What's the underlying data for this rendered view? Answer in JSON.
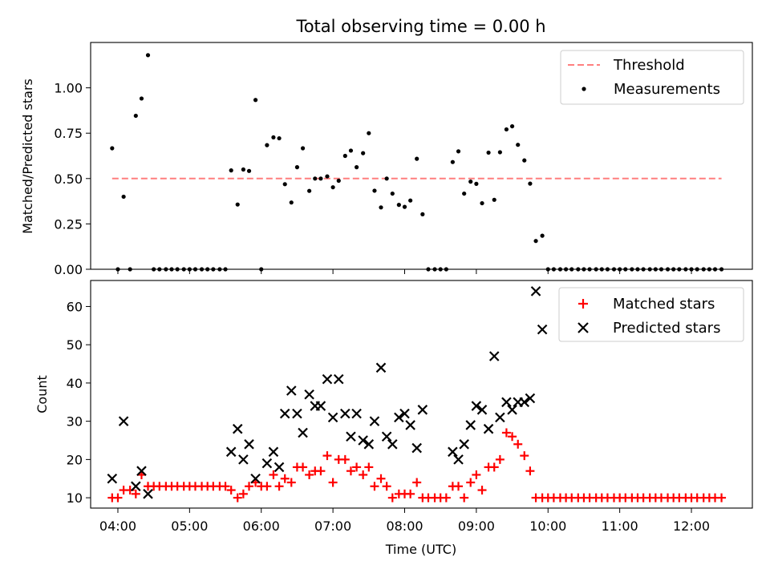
{
  "chart_data": [
    {
      "type": "scatter",
      "title": "Total observing time = 0.00 h",
      "xlabel": "",
      "ylabel": "Matched/Predicted stars",
      "x_units": "hours UTC",
      "xlim": [
        3.62,
        12.85
      ],
      "ylim": [
        0.0,
        1.25
      ],
      "yticks": [
        0.0,
        0.25,
        0.5,
        0.75,
        1.0
      ],
      "yticklabels": [
        "0.00",
        "0.25",
        "0.50",
        "0.75",
        "1.00"
      ],
      "legend": {
        "placement": "top-right",
        "entries": [
          "Threshold",
          "Measurements"
        ]
      },
      "threshold": {
        "name": "Threshold",
        "value": 0.5,
        "x_range": [
          3.92,
          12.42
        ],
        "color": "#ff7f7f",
        "style": "dashed"
      },
      "series": [
        {
          "name": "Measurements",
          "color": "#000000",
          "marker": "dot",
          "points": [
            [
              3.92,
              0.667
            ],
            [
              4.0,
              0.0
            ],
            [
              4.08,
              0.4
            ],
            [
              4.17,
              0.0
            ],
            [
              4.25,
              0.846
            ],
            [
              4.33,
              0.941
            ],
            [
              4.42,
              1.18
            ],
            [
              4.5,
              0.0
            ],
            [
              4.58,
              0.0
            ],
            [
              4.67,
              0.0
            ],
            [
              4.75,
              0.0
            ],
            [
              4.83,
              0.0
            ],
            [
              4.92,
              0.0
            ],
            [
              5.0,
              0.0
            ],
            [
              5.08,
              0.0
            ],
            [
              5.17,
              0.0
            ],
            [
              5.25,
              0.0
            ],
            [
              5.33,
              0.0
            ],
            [
              5.42,
              0.0
            ],
            [
              5.5,
              0.0
            ],
            [
              5.58,
              0.545
            ],
            [
              5.67,
              0.357
            ],
            [
              5.75,
              0.55
            ],
            [
              5.83,
              0.542
            ],
            [
              5.92,
              0.933
            ],
            [
              6.0,
              0.0
            ],
            [
              6.08,
              0.684
            ],
            [
              6.17,
              0.727
            ],
            [
              6.25,
              0.722
            ],
            [
              6.33,
              0.469
            ],
            [
              6.42,
              0.368
            ],
            [
              6.5,
              0.5625
            ],
            [
              6.58,
              0.667
            ],
            [
              6.67,
              0.432
            ],
            [
              6.75,
              0.5
            ],
            [
              6.83,
              0.5
            ],
            [
              6.92,
              0.512
            ],
            [
              7.0,
              0.452
            ],
            [
              7.08,
              0.488
            ],
            [
              7.17,
              0.625
            ],
            [
              7.25,
              0.654
            ],
            [
              7.33,
              0.5625
            ],
            [
              7.42,
              0.64
            ],
            [
              7.5,
              0.75
            ],
            [
              7.58,
              0.433
            ],
            [
              7.67,
              0.341
            ],
            [
              7.75,
              0.5
            ],
            [
              7.83,
              0.417
            ],
            [
              7.92,
              0.355
            ],
            [
              8.0,
              0.344
            ],
            [
              8.08,
              0.379
            ],
            [
              8.17,
              0.609
            ],
            [
              8.25,
              0.303
            ],
            [
              8.33,
              0.0
            ],
            [
              8.42,
              0.0
            ],
            [
              8.5,
              0.0
            ],
            [
              8.58,
              0.0
            ],
            [
              8.67,
              0.591
            ],
            [
              8.75,
              0.65
            ],
            [
              8.83,
              0.417
            ],
            [
              8.92,
              0.483
            ],
            [
              9.0,
              0.471
            ],
            [
              9.08,
              0.364
            ],
            [
              9.17,
              0.643
            ],
            [
              9.25,
              0.383
            ],
            [
              9.33,
              0.645
            ],
            [
              9.42,
              0.771
            ],
            [
              9.5,
              0.788
            ],
            [
              9.58,
              0.686
            ],
            [
              9.67,
              0.6
            ],
            [
              9.75,
              0.472
            ],
            [
              9.83,
              0.156
            ],
            [
              9.92,
              0.185
            ],
            [
              10.0,
              0.0
            ],
            [
              10.08,
              0.0
            ],
            [
              10.17,
              0.0
            ],
            [
              10.25,
              0.0
            ],
            [
              10.33,
              0.0
            ],
            [
              10.42,
              0.0
            ],
            [
              10.5,
              0.0
            ],
            [
              10.58,
              0.0
            ],
            [
              10.67,
              0.0
            ],
            [
              10.75,
              0.0
            ],
            [
              10.83,
              0.0
            ],
            [
              10.92,
              0.0
            ],
            [
              11.0,
              0.0
            ],
            [
              11.08,
              0.0
            ],
            [
              11.17,
              0.0
            ],
            [
              11.25,
              0.0
            ],
            [
              11.33,
              0.0
            ],
            [
              11.42,
              0.0
            ],
            [
              11.5,
              0.0
            ],
            [
              11.58,
              0.0
            ],
            [
              11.67,
              0.0
            ],
            [
              11.75,
              0.0
            ],
            [
              11.83,
              0.0
            ],
            [
              11.92,
              0.0
            ],
            [
              12.0,
              0.0
            ],
            [
              12.08,
              0.0
            ],
            [
              12.17,
              0.0
            ],
            [
              12.25,
              0.0
            ],
            [
              12.33,
              0.0
            ],
            [
              12.42,
              0.0
            ]
          ]
        }
      ]
    },
    {
      "type": "scatter",
      "title": "",
      "xlabel": "Time (UTC)",
      "ylabel": "Count",
      "x_units": "hours UTC",
      "xlim": [
        3.62,
        12.85
      ],
      "ylim": [
        7.3,
        66.8
      ],
      "yticks": [
        10,
        20,
        30,
        40,
        50,
        60
      ],
      "yticklabels": [
        "10",
        "20",
        "30",
        "40",
        "50",
        "60"
      ],
      "xticks": [
        4,
        5,
        6,
        7,
        8,
        9,
        10,
        11,
        12
      ],
      "xticklabels": [
        "04:00",
        "05:00",
        "06:00",
        "07:00",
        "08:00",
        "09:00",
        "10:00",
        "11:00",
        "12:00"
      ],
      "legend": {
        "placement": "top-right",
        "entries": [
          "Matched stars",
          "Predicted stars"
        ]
      },
      "series": [
        {
          "name": "Matched stars",
          "color": "#ff0000",
          "marker": "plus",
          "points": [
            [
              3.92,
              10
            ],
            [
              4.0,
              10
            ],
            [
              4.08,
              12
            ],
            [
              4.17,
              12
            ],
            [
              4.25,
              11
            ],
            [
              4.33,
              16
            ],
            [
              4.42,
              13
            ],
            [
              4.5,
              13
            ],
            [
              4.58,
              13
            ],
            [
              4.67,
              13
            ],
            [
              4.75,
              13
            ],
            [
              4.83,
              13
            ],
            [
              4.92,
              13
            ],
            [
              5.0,
              13
            ],
            [
              5.08,
              13
            ],
            [
              5.17,
              13
            ],
            [
              5.25,
              13
            ],
            [
              5.33,
              13
            ],
            [
              5.42,
              13
            ],
            [
              5.5,
              13
            ],
            [
              5.58,
              12
            ],
            [
              5.67,
              10
            ],
            [
              5.75,
              11
            ],
            [
              5.83,
              13
            ],
            [
              5.92,
              14
            ],
            [
              6.0,
              13
            ],
            [
              6.08,
              13
            ],
            [
              6.17,
              16
            ],
            [
              6.25,
              13
            ],
            [
              6.33,
              15
            ],
            [
              6.42,
              14
            ],
            [
              6.5,
              18
            ],
            [
              6.58,
              18
            ],
            [
              6.67,
              16
            ],
            [
              6.75,
              17
            ],
            [
              6.83,
              17
            ],
            [
              6.92,
              21
            ],
            [
              7.0,
              14
            ],
            [
              7.08,
              20
            ],
            [
              7.17,
              20
            ],
            [
              7.25,
              17
            ],
            [
              7.33,
              18
            ],
            [
              7.42,
              16
            ],
            [
              7.5,
              18
            ],
            [
              7.58,
              13
            ],
            [
              7.67,
              15
            ],
            [
              7.75,
              13
            ],
            [
              7.83,
              10
            ],
            [
              7.92,
              11
            ],
            [
              8.0,
              11
            ],
            [
              8.08,
              11
            ],
            [
              8.17,
              14
            ],
            [
              8.25,
              10
            ],
            [
              8.33,
              10
            ],
            [
              8.42,
              10
            ],
            [
              8.5,
              10
            ],
            [
              8.58,
              10
            ],
            [
              8.67,
              13
            ],
            [
              8.75,
              13
            ],
            [
              8.83,
              10
            ],
            [
              8.92,
              14
            ],
            [
              9.0,
              16
            ],
            [
              9.08,
              12
            ],
            [
              9.17,
              18
            ],
            [
              9.25,
              18
            ],
            [
              9.33,
              20
            ],
            [
              9.42,
              27
            ],
            [
              9.5,
              26
            ],
            [
              9.58,
              24
            ],
            [
              9.67,
              21
            ],
            [
              9.75,
              17
            ],
            [
              9.83,
              10
            ],
            [
              9.92,
              10
            ],
            [
              10.0,
              10
            ],
            [
              10.08,
              10
            ],
            [
              10.17,
              10
            ],
            [
              10.25,
              10
            ],
            [
              10.33,
              10
            ],
            [
              10.42,
              10
            ],
            [
              10.5,
              10
            ],
            [
              10.58,
              10
            ],
            [
              10.67,
              10
            ],
            [
              10.75,
              10
            ],
            [
              10.83,
              10
            ],
            [
              10.92,
              10
            ],
            [
              11.0,
              10
            ],
            [
              11.08,
              10
            ],
            [
              11.17,
              10
            ],
            [
              11.25,
              10
            ],
            [
              11.33,
              10
            ],
            [
              11.42,
              10
            ],
            [
              11.5,
              10
            ],
            [
              11.58,
              10
            ],
            [
              11.67,
              10
            ],
            [
              11.75,
              10
            ],
            [
              11.83,
              10
            ],
            [
              11.92,
              10
            ],
            [
              12.0,
              10
            ],
            [
              12.08,
              10
            ],
            [
              12.17,
              10
            ],
            [
              12.25,
              10
            ],
            [
              12.33,
              10
            ],
            [
              12.42,
              10
            ]
          ]
        },
        {
          "name": "Predicted stars",
          "color": "#000000",
          "marker": "x",
          "points": [
            [
              3.92,
              15
            ],
            [
              4.08,
              30
            ],
            [
              4.25,
              13
            ],
            [
              4.33,
              17
            ],
            [
              4.42,
              11
            ],
            [
              5.58,
              22
            ],
            [
              5.67,
              28
            ],
            [
              5.75,
              20
            ],
            [
              5.83,
              24
            ],
            [
              5.92,
              15
            ],
            [
              6.08,
              19
            ],
            [
              6.17,
              22
            ],
            [
              6.25,
              18
            ],
            [
              6.33,
              32
            ],
            [
              6.42,
              38
            ],
            [
              6.5,
              32
            ],
            [
              6.58,
              27
            ],
            [
              6.67,
              37
            ],
            [
              6.75,
              34
            ],
            [
              6.83,
              34
            ],
            [
              6.92,
              41
            ],
            [
              7.0,
              31
            ],
            [
              7.08,
              41
            ],
            [
              7.17,
              32
            ],
            [
              7.25,
              26
            ],
            [
              7.33,
              32
            ],
            [
              7.42,
              25
            ],
            [
              7.5,
              24
            ],
            [
              7.58,
              30
            ],
            [
              7.67,
              44
            ],
            [
              7.75,
              26
            ],
            [
              7.83,
              24
            ],
            [
              7.92,
              31
            ],
            [
              8.0,
              32
            ],
            [
              8.08,
              29
            ],
            [
              8.17,
              23
            ],
            [
              8.25,
              33
            ],
            [
              8.67,
              22
            ],
            [
              8.75,
              20
            ],
            [
              8.83,
              24
            ],
            [
              8.92,
              29
            ],
            [
              9.0,
              34
            ],
            [
              9.08,
              33
            ],
            [
              9.17,
              28
            ],
            [
              9.25,
              47
            ],
            [
              9.33,
              31
            ],
            [
              9.42,
              35
            ],
            [
              9.5,
              33
            ],
            [
              9.58,
              35
            ],
            [
              9.67,
              35
            ],
            [
              9.75,
              36
            ],
            [
              9.83,
              64
            ],
            [
              9.92,
              54
            ]
          ]
        }
      ]
    }
  ]
}
